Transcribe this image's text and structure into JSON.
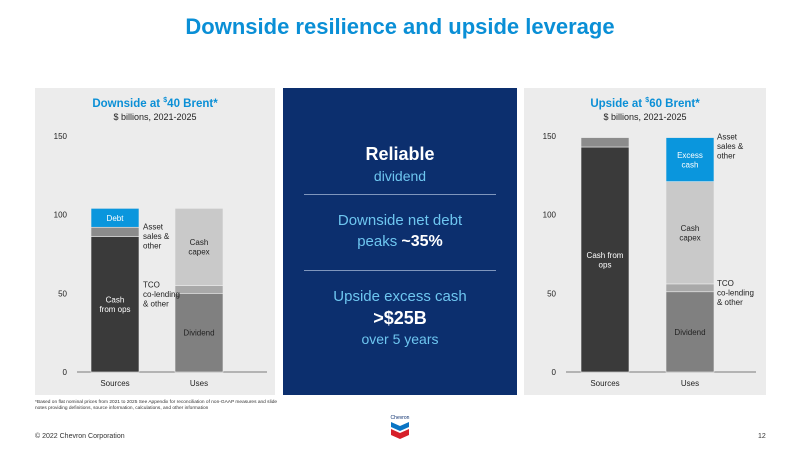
{
  "title": "Downside resilience and upside leverage",
  "footnote": "*Based on flat nominal prices from 2021 to 2025 See Appendix for reconciliation of non-GAAP measures and slide notes providing definitions, source information, calculations, and other information",
  "copyright": "© 2022 Chevron Corporation",
  "page_number": "12",
  "logo_text": "Chevron",
  "center_box": {
    "reliable": "Reliable",
    "dividend": "dividend",
    "net_debt_line1": "Downside net debt",
    "net_debt_peaks": "peaks ",
    "net_debt_value": "~35%",
    "upside_line1": "Upside excess cash",
    "upside_value": ">$25B",
    "upside_line3": "over 5 years"
  },
  "colors": {
    "title_blue": "#0a8fd6",
    "navy": "#0c2f6e",
    "cash_from_ops": "#3a3a3a",
    "asset_sales": "#8c8c8c",
    "debt": "#0a96dd",
    "dividend": "#808080",
    "tco": "#a9a9a9",
    "cash_capex": "#c9c9c9",
    "excess_cash": "#0a96dd"
  },
  "chart_data": [
    {
      "type": "bar",
      "stacked": true,
      "title": "Downside at $40 Brent*",
      "title_prefix": "Downside at ",
      "title_sup": "$",
      "title_suffix": "40 Brent*",
      "subtitle": "$ billions, 2021-2025",
      "categories": [
        "Sources",
        "Uses"
      ],
      "ylim": [
        0,
        150
      ],
      "yticks": [
        "0",
        "50",
        "100",
        "150"
      ],
      "series": [
        {
          "name": "Cash from ops",
          "label": "Cash\nfrom ops",
          "category": "Sources",
          "base": 0,
          "value": 86,
          "color_key": "cash_from_ops",
          "label_position": "inside"
        },
        {
          "name": "Asset sales & other",
          "label": "Asset\nsales &\nother",
          "category": "Sources",
          "base": 86,
          "value": 6,
          "color_key": "asset_sales",
          "label_position": "right"
        },
        {
          "name": "Debt",
          "label": "Debt",
          "category": "Sources",
          "base": 92,
          "value": 12,
          "color_key": "debt",
          "label_position": "inside"
        },
        {
          "name": "Dividend",
          "label": "Dividend",
          "category": "Uses",
          "base": 0,
          "value": 50,
          "color_key": "dividend",
          "label_position": "inside"
        },
        {
          "name": "TCO co-lending & other",
          "label": "TCO\nco-lending\n& other",
          "category": "Uses",
          "base": 50,
          "value": 5,
          "color_key": "tco",
          "label_position": "right"
        },
        {
          "name": "Cash capex",
          "label": "Cash\ncapex",
          "category": "Uses",
          "base": 55,
          "value": 49,
          "color_key": "cash_capex",
          "label_position": "inside"
        }
      ]
    },
    {
      "type": "bar",
      "stacked": true,
      "title": "Upside at $60 Brent*",
      "title_prefix": "Upside at ",
      "title_sup": "$",
      "title_suffix": "60 Brent*",
      "subtitle": "$ billions, 2021-2025",
      "categories": [
        "Sources",
        "Uses"
      ],
      "ylim": [
        0,
        150
      ],
      "yticks": [
        "0",
        "50",
        "100",
        "150"
      ],
      "series": [
        {
          "name": "Cash from ops",
          "label": "Cash from\nops",
          "category": "Sources",
          "base": 0,
          "value": 143,
          "color_key": "cash_from_ops",
          "label_position": "inside"
        },
        {
          "name": "Asset sales & other",
          "label": "Asset\nsales &\nother",
          "category": "Sources",
          "base": 143,
          "value": 6,
          "color_key": "asset_sales",
          "label_position": "right"
        },
        {
          "name": "Dividend",
          "label": "Dividend",
          "category": "Uses",
          "base": 0,
          "value": 51,
          "color_key": "dividend",
          "label_position": "inside"
        },
        {
          "name": "TCO co-lending & other",
          "label": "TCO\nco-lending\n& other",
          "category": "Uses",
          "base": 51,
          "value": 5,
          "color_key": "tco",
          "label_position": "right"
        },
        {
          "name": "Cash capex",
          "label": "Cash\ncapex",
          "category": "Uses",
          "base": 56,
          "value": 65,
          "color_key": "cash_capex",
          "label_position": "inside"
        },
        {
          "name": "Excess cash",
          "label": "Excess\ncash",
          "category": "Uses",
          "base": 121,
          "value": 28,
          "color_key": "excess_cash",
          "label_position": "inside"
        }
      ]
    }
  ]
}
